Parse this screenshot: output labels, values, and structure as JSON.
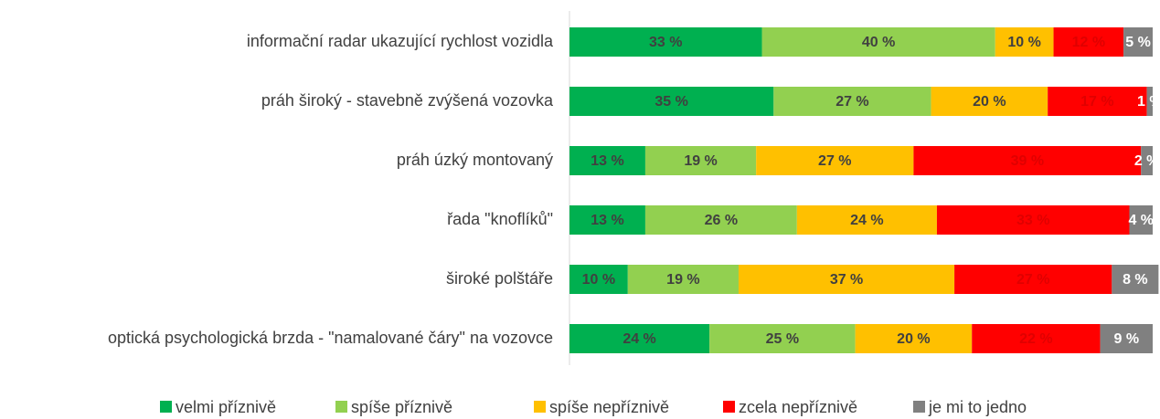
{
  "chart_data": {
    "type": "stacked-bar-horizontal",
    "categories": [
      "informační radar ukazující rychlost vozidla",
      "práh široký - stavebně zvýšená vozovka",
      "práh úzký montovaný",
      "řada \"knoflíků\"",
      "široké polštáře",
      "optická psychologická brzda - \"namalované čáry\" na vozovce"
    ],
    "series": [
      {
        "name": "velmi příznivě",
        "color": "#00b050",
        "label_color": "#404040",
        "values": [
          33,
          35,
          13,
          13,
          10,
          24
        ],
        "value_labels": [
          "33 %",
          "35 %",
          "13 %",
          "13 %",
          "10 %",
          "24 %"
        ]
      },
      {
        "name": "spíše příznivě",
        "color": "#92d050",
        "label_color": "#404040",
        "values": [
          40,
          27,
          19,
          26,
          19,
          25
        ],
        "value_labels": [
          "40 %",
          "27 %",
          "19 %",
          "26 %",
          "19 %",
          "25 %"
        ]
      },
      {
        "name": "spíše nepříznivě",
        "color": "#ffc000",
        "label_color": "#404040",
        "values": [
          10,
          20,
          27,
          24,
          37,
          20
        ],
        "value_labels": [
          "10 %",
          "20 %",
          "27 %",
          "24 %",
          "37 %",
          "20 %"
        ]
      },
      {
        "name": "zcela nepříznivě",
        "color": "#ff0000",
        "label_color": "#e00000",
        "values": [
          12,
          17,
          39,
          33,
          27,
          22
        ],
        "value_labels": [
          "12 %",
          "17 %",
          "39 %",
          "33 %",
          "27 %",
          "22 %"
        ]
      },
      {
        "name": "je mi to jedno",
        "color": "#808080",
        "label_color": "#ffffff",
        "values": [
          5,
          1,
          2,
          4,
          8,
          9
        ],
        "value_labels": [
          "5 %",
          "1 %",
          "2 %",
          "4 %",
          "8 %",
          "9 %"
        ]
      }
    ]
  }
}
